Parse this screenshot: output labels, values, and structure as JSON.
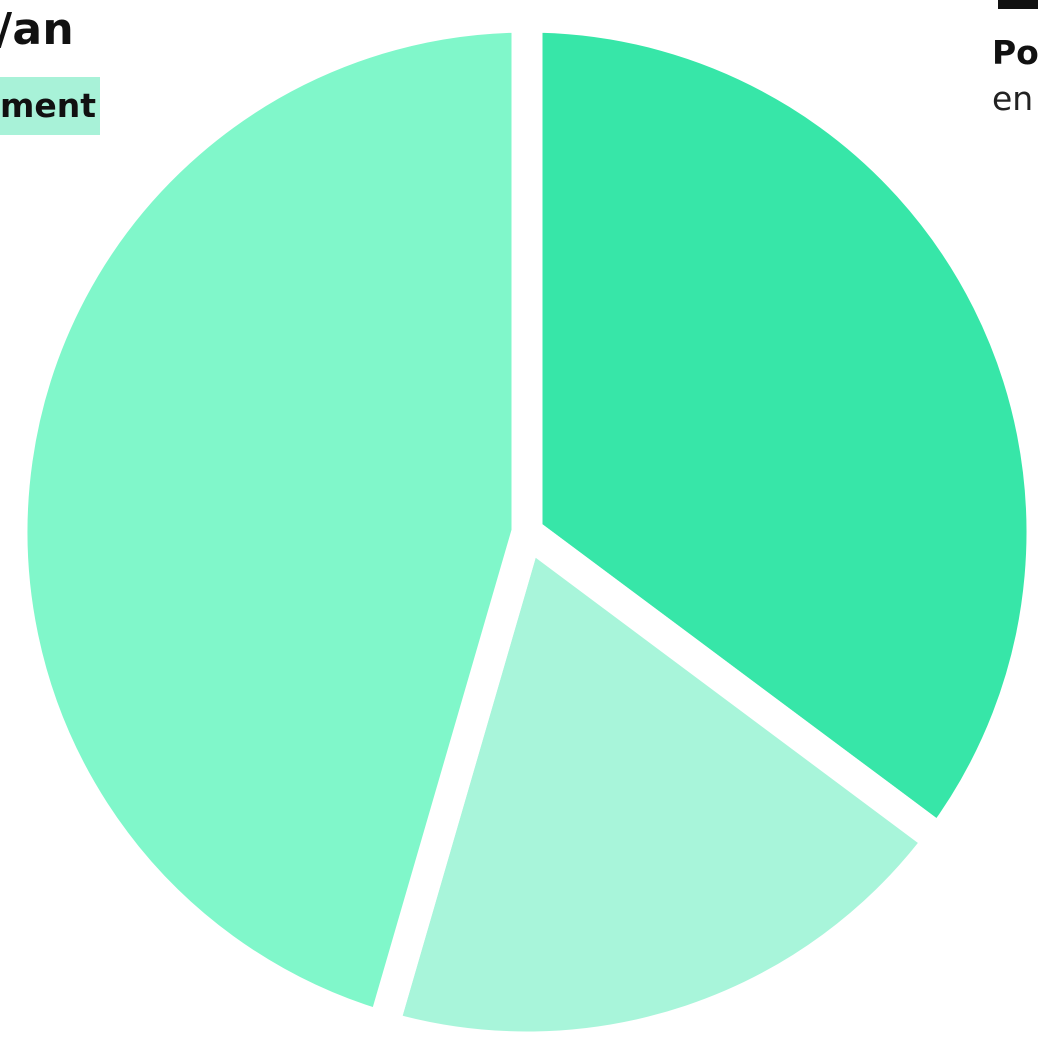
{
  "header": {
    "title_fragment": "/an",
    "subtitle_fragment": "ment"
  },
  "legend": {
    "label_fragment": "Po",
    "description_fragment": "en"
  },
  "colors": {
    "background": "#ffffff",
    "text": "#111111",
    "subtitle_highlight": "#a8f2d8",
    "slice_divider": "#ffffff"
  },
  "chart_data": {
    "type": "pie",
    "title": "",
    "slices": [
      {
        "value": 35.2,
        "color": "#37e6a8"
      },
      {
        "value": 19.3,
        "color": "#a8f5da"
      },
      {
        "value": 45.5,
        "color": "#80f7ca"
      }
    ]
  }
}
